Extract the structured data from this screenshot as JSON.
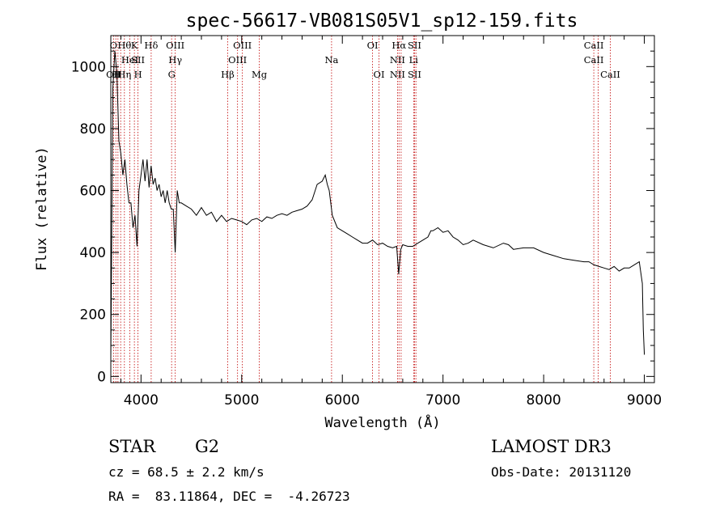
{
  "chart_data": {
    "type": "line",
    "title": "spec-56617-VB081S05V1_sp12-159.fits",
    "xlabel": "Wavelength (Å)",
    "ylabel": "Flux (relative)",
    "xlim": [
      3700,
      9100
    ],
    "ylim": [
      -20,
      1100
    ],
    "xticks": [
      4000,
      5000,
      6000,
      7000,
      8000,
      9000
    ],
    "yticks": [
      0,
      200,
      400,
      600,
      800,
      1000
    ],
    "grid": false,
    "series": [
      {
        "x": [
          3700,
          3720,
          3740,
          3760,
          3780,
          3800,
          3820,
          3840,
          3860,
          3880,
          3900,
          3920,
          3940,
          3960,
          3980,
          4000,
          4020,
          4040,
          4060,
          4080,
          4100,
          4120,
          4140,
          4160,
          4180,
          4200,
          4220,
          4240,
          4260,
          4280,
          4300,
          4320,
          4340,
          4360,
          4380,
          4400,
          4450,
          4500,
          4550,
          4600,
          4650,
          4700,
          4750,
          4800,
          4850,
          4900,
          4950,
          5000,
          5050,
          5100,
          5150,
          5200,
          5250,
          5300,
          5350,
          5400,
          5450,
          5500,
          5550,
          5600,
          5650,
          5700,
          5750,
          5800,
          5830,
          5850,
          5870,
          5900,
          5950,
          6000,
          6050,
          6100,
          6150,
          6200,
          6250,
          6300,
          6350,
          6400,
          6450,
          6500,
          6540,
          6560,
          6580,
          6600,
          6650,
          6700,
          6750,
          6800,
          6850,
          6880,
          6900,
          6950,
          7000,
          7050,
          7100,
          7150,
          7200,
          7250,
          7300,
          7400,
          7500,
          7600,
          7650,
          7700,
          7800,
          7900,
          8000,
          8100,
          8200,
          8300,
          8400,
          8450,
          8500,
          8550,
          8600,
          8650,
          8700,
          8750,
          8800,
          8850,
          8900,
          8950,
          8980,
          8990,
          9000
        ],
        "values": [
          60,
          930,
          1050,
          980,
          760,
          720,
          650,
          700,
          620,
          560,
          560,
          480,
          520,
          420,
          600,
          650,
          700,
          630,
          700,
          610,
          680,
          620,
          640,
          600,
          620,
          580,
          600,
          560,
          600,
          560,
          540,
          540,
          400,
          600,
          560,
          560,
          550,
          540,
          520,
          545,
          520,
          530,
          500,
          520,
          500,
          510,
          505,
          500,
          490,
          505,
          510,
          500,
          515,
          510,
          520,
          525,
          520,
          530,
          535,
          540,
          550,
          570,
          620,
          630,
          650,
          620,
          600,
          520,
          480,
          470,
          460,
          450,
          440,
          430,
          430,
          440,
          425,
          430,
          420,
          415,
          420,
          330,
          410,
          425,
          420,
          420,
          430,
          440,
          450,
          470,
          470,
          480,
          465,
          470,
          450,
          440,
          425,
          430,
          440,
          425,
          415,
          430,
          425,
          410,
          415,
          415,
          400,
          390,
          380,
          375,
          370,
          370,
          360,
          355,
          350,
          345,
          355,
          340,
          350,
          350,
          360,
          370,
          300,
          150,
          70
        ]
      }
    ],
    "lines": [
      {
        "wl": 3727,
        "top": "O",
        "mid": "",
        "bot": "OII"
      },
      {
        "wl": 3750,
        "top": "",
        "mid": "",
        "bot": "H"
      },
      {
        "wl": 3771,
        "top": "",
        "mid": "",
        "bot": "H"
      },
      {
        "wl": 3798,
        "top": "",
        "mid": "",
        "bot": ""
      },
      {
        "wl": 3835,
        "top": "Hθ",
        "mid": "",
        "bot": "Hη"
      },
      {
        "wl": 3889,
        "top": "",
        "mid": "HeI",
        "bot": ""
      },
      {
        "wl": 3934,
        "top": "K",
        "mid": "",
        "bot": ""
      },
      {
        "wl": 3970,
        "top": "",
        "mid": "SII",
        "bot": "H"
      },
      {
        "wl": 4101,
        "top": "Hδ",
        "mid": "",
        "bot": ""
      },
      {
        "wl": 4304,
        "top": "",
        "mid": "",
        "bot": "G"
      },
      {
        "wl": 4340,
        "top": "OIII",
        "mid": "Hγ",
        "bot": ""
      },
      {
        "wl": 4861,
        "top": "",
        "mid": "",
        "bot": "Hβ"
      },
      {
        "wl": 4959,
        "top": "",
        "mid": "OIII",
        "bot": ""
      },
      {
        "wl": 5007,
        "top": "OIII",
        "mid": "",
        "bot": ""
      },
      {
        "wl": 5175,
        "top": "",
        "mid": "",
        "bot": "Mg"
      },
      {
        "wl": 5893,
        "top": "",
        "mid": "Na",
        "bot": ""
      },
      {
        "wl": 6300,
        "top": "OI",
        "mid": "",
        "bot": ""
      },
      {
        "wl": 6364,
        "top": "",
        "mid": "",
        "bot": "OI"
      },
      {
        "wl": 6548,
        "top": "",
        "mid": "NII",
        "bot": "NII"
      },
      {
        "wl": 6563,
        "top": "Hα",
        "mid": "",
        "bot": ""
      },
      {
        "wl": 6584,
        "top": "",
        "mid": "",
        "bot": ""
      },
      {
        "wl": 6708,
        "top": "",
        "mid": "Li",
        "bot": ""
      },
      {
        "wl": 6717,
        "top": "SII",
        "mid": "",
        "bot": "SII"
      },
      {
        "wl": 6731,
        "top": "",
        "mid": "",
        "bot": ""
      },
      {
        "wl": 8498,
        "top": "CaII",
        "mid": "CaII",
        "bot": ""
      },
      {
        "wl": 8542,
        "top": "",
        "mid": "",
        "bot": ""
      },
      {
        "wl": 8662,
        "top": "",
        "mid": "",
        "bot": "CaII"
      }
    ]
  },
  "info": {
    "class": "STAR",
    "subclass": "G2",
    "survey": "LAMOST DR3",
    "cz": "cz = 68.5 ± 2.2 km/s",
    "obs_date": "Obs-Date: 20131120",
    "coords": "RA =  83.11864, DEC =  -4.26723"
  },
  "colors": {
    "spectrum": "#000000",
    "line_marker": "#c00000",
    "background": "#ffffff"
  }
}
